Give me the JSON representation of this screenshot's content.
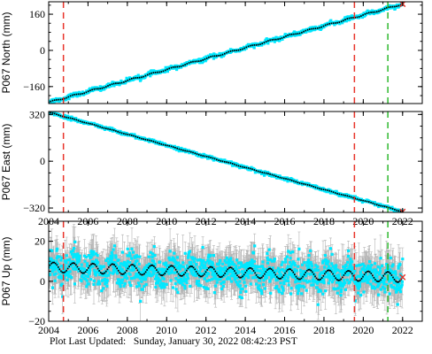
{
  "footer": {
    "label": "Plot Last Updated:",
    "timestamp": "Sunday, January 30, 2022 08:42:23 PST"
  },
  "colors": {
    "data": "#00e8ff",
    "error": "#b4b4b4",
    "model": "#000000",
    "red_line": "#e8332a",
    "green_line": "#2eb82e",
    "endpoints": "#e8332a"
  },
  "chart_data": [
    {
      "type": "scatter",
      "ylabel": "P067 North (mm)",
      "xlim": [
        2004.0,
        2023.0
      ],
      "ylim": [
        -235,
        215
      ],
      "yticks": [
        -160,
        0,
        160
      ],
      "xticks": [
        2004,
        2006,
        2008,
        2010,
        2012,
        2014,
        2016,
        2018,
        2020,
        2022
      ],
      "xticklabels": [
        "2004",
        "2006",
        "2008",
        "2010",
        "2012",
        "2014",
        "2016",
        "2018",
        "2020",
        "2022"
      ],
      "show_xticklabels": false,
      "series": [
        {
          "start": [
            2004.0,
            -230
          ],
          "end": [
            2022.0,
            205
          ],
          "seasonal_amplitude": 3,
          "noise": 4,
          "error": 0
        }
      ],
      "vlines": [
        {
          "x": 2004.75,
          "color": "red"
        },
        {
          "x": 2019.55,
          "color": "red"
        },
        {
          "x": 2021.25,
          "color": "green"
        }
      ]
    },
    {
      "type": "scatter",
      "ylabel": "P067 East (mm)",
      "xlim": [
        2004.0,
        2023.0
      ],
      "ylim": [
        -350,
        340
      ],
      "yticks": [
        -320,
        0,
        320
      ],
      "xticks": [
        2004,
        2006,
        2008,
        2010,
        2012,
        2014,
        2016,
        2018,
        2020,
        2022
      ],
      "xticklabels": [
        "2004",
        "2006",
        "2008",
        "2010",
        "2012",
        "2014",
        "2016",
        "2018",
        "2020",
        "2022"
      ],
      "show_xticklabels": true,
      "series": [
        {
          "start": [
            2004.0,
            335
          ],
          "end": [
            2022.0,
            -345
          ],
          "seasonal_amplitude": 2,
          "noise": 5,
          "error": 0
        }
      ],
      "vlines": [
        {
          "x": 2004.75,
          "color": "red"
        },
        {
          "x": 2019.55,
          "color": "red"
        },
        {
          "x": 2021.25,
          "color": "green"
        }
      ]
    },
    {
      "type": "scatter",
      "ylabel": "P067 Up (mm)",
      "xlim": [
        2004.0,
        2023.0
      ],
      "ylim": [
        -20,
        30
      ],
      "yticks": [
        -20,
        0,
        20
      ],
      "xticks": [
        2004,
        2006,
        2008,
        2010,
        2012,
        2014,
        2016,
        2018,
        2020,
        2022
      ],
      "xticklabels": [
        "2004",
        "2006",
        "2008",
        "2010",
        "2012",
        "2014",
        "2016",
        "2018",
        "2020",
        "2022"
      ],
      "show_xticklabels": true,
      "series": [
        {
          "start": [
            2004.0,
            7
          ],
          "end": [
            2022.0,
            2
          ],
          "seasonal_amplitude": 2.5,
          "noise": 4,
          "error": 4
        }
      ],
      "vlines": [
        {
          "x": 2004.75,
          "color": "red"
        },
        {
          "x": 2019.55,
          "color": "red"
        },
        {
          "x": 2021.25,
          "color": "green"
        }
      ]
    }
  ]
}
